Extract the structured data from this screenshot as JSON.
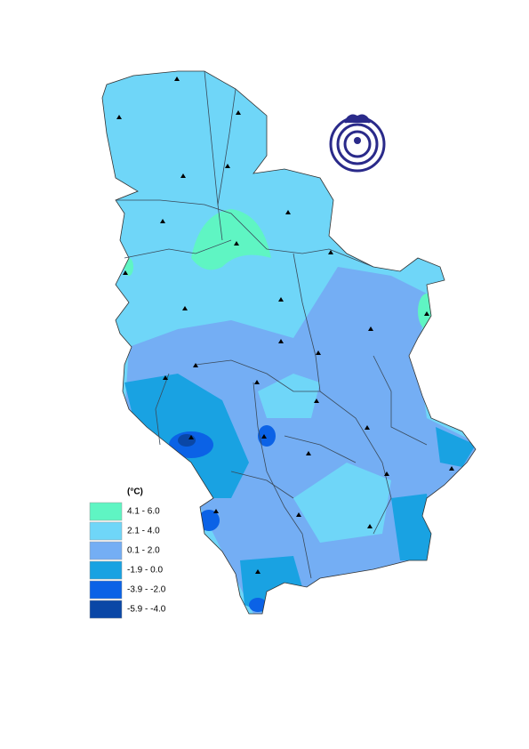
{
  "legend": {
    "unit": "(°C)",
    "items": [
      {
        "label": "4.1 - 6.0",
        "color": "#5ff5c3"
      },
      {
        "label": "2.1 - 4.0",
        "color": "#6fd6f8"
      },
      {
        "label": "0.1 - 2.0",
        "color": "#74aef4"
      },
      {
        "label": "-1.9 - 0.0",
        "color": "#19a2e2"
      },
      {
        "label": "-3.9 - -2.0",
        "color": "#0b62e6"
      },
      {
        "label": "-5.9 - -4.0",
        "color": "#0a47a6"
      }
    ]
  }
}
